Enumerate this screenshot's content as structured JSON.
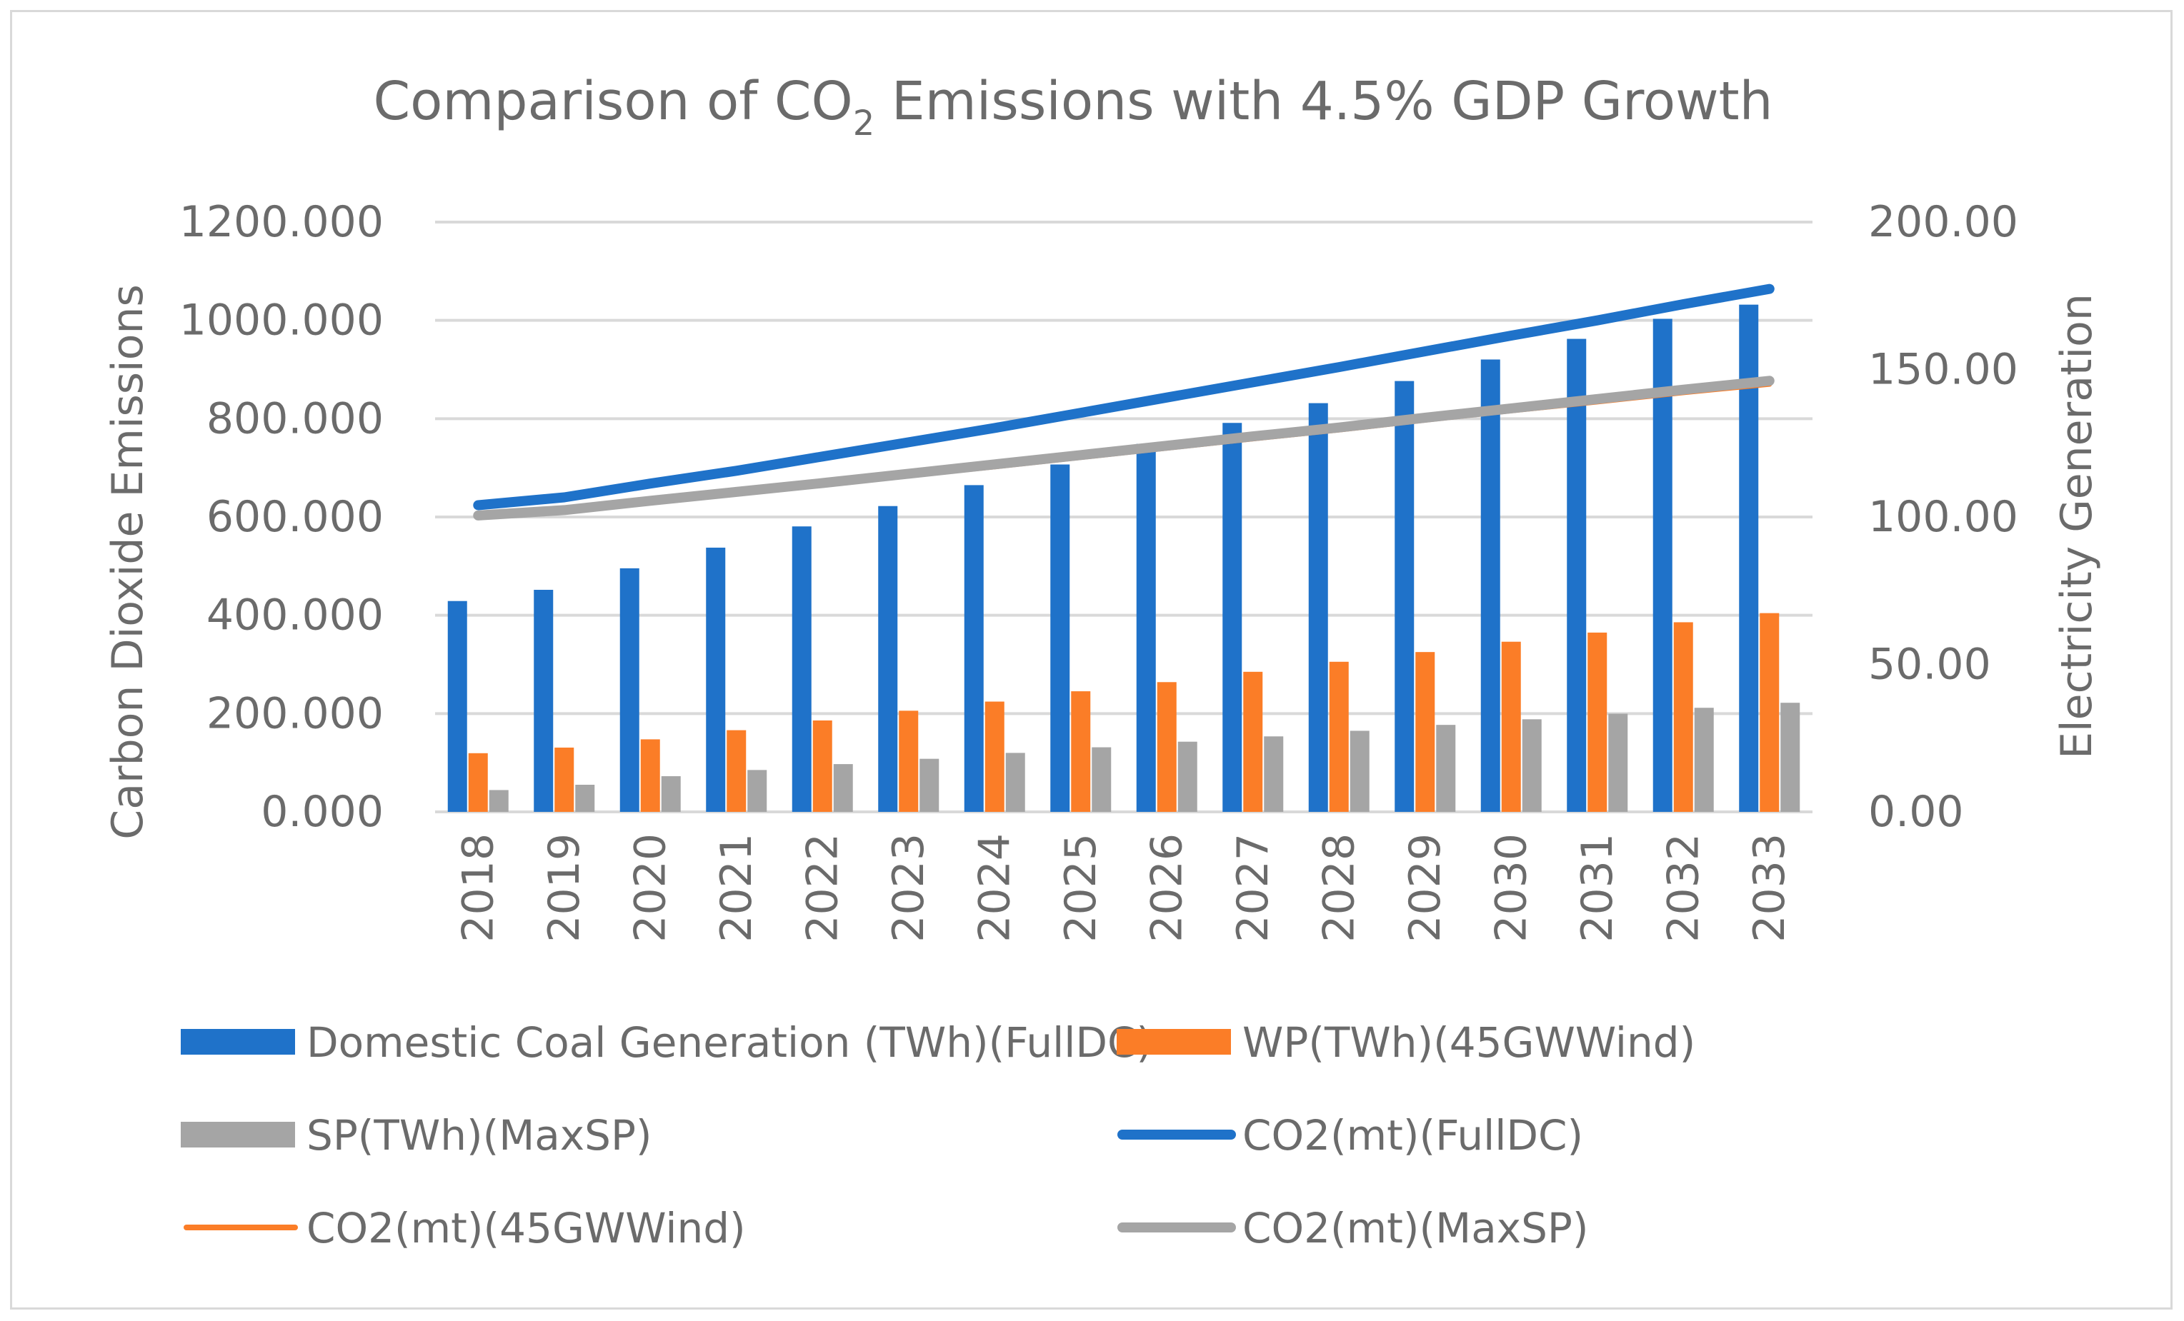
{
  "chart_data": {
    "type": "bar",
    "title": {
      "prefix": "Comparison of CO",
      "subscript": "2",
      "suffix": " Emissions with 4.5% GDP Growth"
    },
    "categories": [
      "2018",
      "2019",
      "2020",
      "2021",
      "2022",
      "2023",
      "2024",
      "2025",
      "2026",
      "2027",
      "2028",
      "2029",
      "2030",
      "2031",
      "2032",
      "2033"
    ],
    "y_left": {
      "label": "Carbon Dioxide Emissions",
      "range": [
        0,
        1200
      ],
      "ticks": [
        "0.000",
        "200.000",
        "400.000",
        "600.000",
        "800.000",
        "1000.000",
        "1200.000"
      ]
    },
    "y_right": {
      "label": "Electricity Generation",
      "range": [
        0,
        200
      ],
      "ticks": [
        "0.00",
        "50.00",
        "100.00",
        "150.00",
        "200.00"
      ]
    },
    "grid": true,
    "legend_position": "bottom",
    "bar_series": [
      {
        "name": "Domestic Coal Generation (TWh)(FullDC)",
        "color": "#1f72c9",
        "axis": "right",
        "values": [
          71.5,
          75.3,
          82.6,
          89.6,
          96.8,
          103.7,
          110.8,
          117.8,
          124.8,
          131.9,
          138.6,
          146.1,
          153.4,
          160.4,
          167.2,
          172.0
        ]
      },
      {
        "name": "WP(TWh)(45GWWind)",
        "color": "#fb7d27",
        "axis": "right",
        "values": [
          19.9,
          21.8,
          24.6,
          27.7,
          31.0,
          34.3,
          37.4,
          40.9,
          44.0,
          47.5,
          50.9,
          54.2,
          57.7,
          60.8,
          64.3,
          67.4
        ]
      },
      {
        "name": "SP(TWh)(MaxSP)",
        "color": "#a5a5a5",
        "axis": "right",
        "values": [
          7.4,
          9.2,
          12.1,
          14.2,
          16.2,
          18.0,
          20.0,
          21.9,
          23.8,
          25.6,
          27.5,
          29.5,
          31.4,
          33.3,
          35.3,
          37.0
        ]
      }
    ],
    "line_series": [
      {
        "name": "CO2(mt)(FullDC)",
        "color": "#1f72c9",
        "axis": "left",
        "values": [
          624,
          640,
          668,
          694,
          723,
          752,
          781,
          812,
          843,
          874,
          905,
          937,
          969,
          1000,
          1033,
          1064
        ]
      },
      {
        "name": "CO2(mt)(45GWWind)",
        "color": "#fb7d27",
        "axis": "left",
        "values": [
          600,
          611,
          629,
          647,
          665,
          684,
          702,
          721,
          740,
          759,
          777,
          797,
          816,
          834,
          853,
          870
        ]
      },
      {
        "name": "CO2(mt)(MaxSP)",
        "color": "#a5a5a5",
        "axis": "left",
        "values": [
          603,
          614,
          633,
          651,
          669,
          688,
          707,
          726,
          745,
          764,
          782,
          802,
          821,
          840,
          859,
          877
        ]
      }
    ],
    "legend": [
      {
        "name": "Domestic Coal Generation (TWh)(FullDC)",
        "color": "#1f72c9",
        "kind": "bar"
      },
      {
        "name": "WP(TWh)(45GWWind)",
        "color": "#fb7d27",
        "kind": "bar"
      },
      {
        "name": "SP(TWh)(MaxSP)",
        "color": "#a5a5a5",
        "kind": "bar"
      },
      {
        "name": "CO2(mt)(FullDC)",
        "color": "#1f72c9",
        "kind": "line"
      },
      {
        "name": "CO2(mt)(45GWWind)",
        "color": "#fb7d27",
        "kind": "line"
      },
      {
        "name": "CO2(mt)(MaxSP)",
        "color": "#a5a5a5",
        "kind": "line"
      }
    ]
  }
}
